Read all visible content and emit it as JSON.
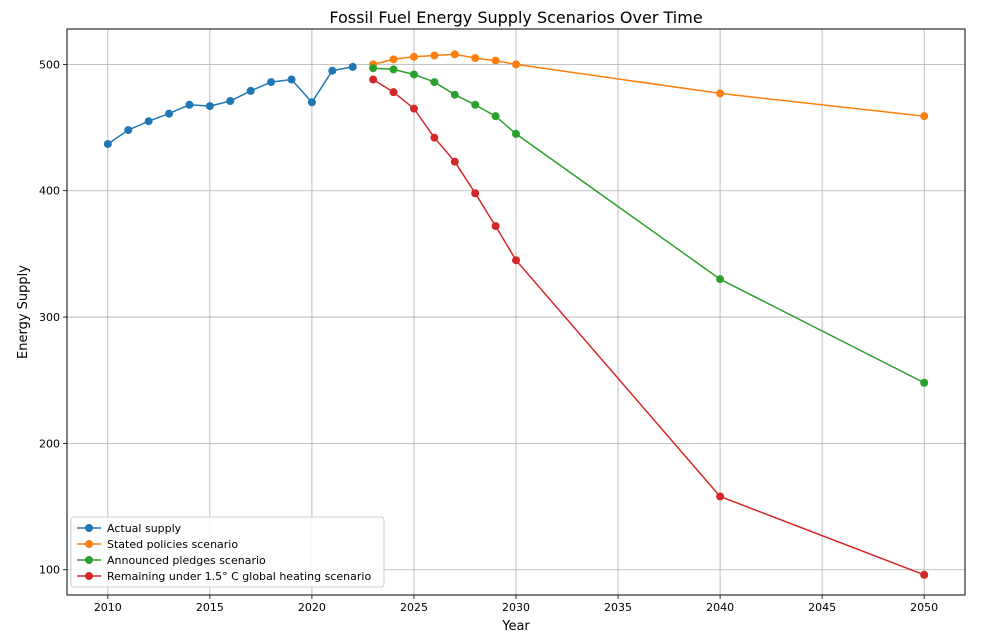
{
  "chart_data": {
    "type": "line",
    "title": "Fossil Fuel Energy Supply Scenarios Over Time",
    "xlabel": "Year",
    "ylabel": "Energy Supply",
    "xlim": [
      2008,
      2052
    ],
    "ylim": [
      80,
      528
    ],
    "xticks": [
      2010,
      2015,
      2020,
      2025,
      2030,
      2035,
      2040,
      2045,
      2050
    ],
    "yticks": [
      100,
      200,
      300,
      400,
      500
    ],
    "grid": true,
    "legend_position": "lower-left",
    "series": [
      {
        "name": "Actual supply",
        "color": "#1f77b4",
        "x": [
          2010,
          2011,
          2012,
          2013,
          2014,
          2015,
          2016,
          2017,
          2018,
          2019,
          2020,
          2021,
          2022
        ],
        "y": [
          437,
          448,
          455,
          461,
          468,
          467,
          471,
          479,
          486,
          488,
          470,
          495,
          498
        ]
      },
      {
        "name": "Stated policies scenario",
        "color": "#ff7f0e",
        "x": [
          2023,
          2024,
          2025,
          2026,
          2027,
          2028,
          2029,
          2030,
          2040,
          2050
        ],
        "y": [
          500,
          504,
          506,
          507,
          508,
          505,
          503,
          500,
          477,
          459
        ]
      },
      {
        "name": "Announced pledges scenario",
        "color": "#2ca02c",
        "x": [
          2023,
          2024,
          2025,
          2026,
          2027,
          2028,
          2029,
          2030,
          2040,
          2050
        ],
        "y": [
          497,
          496,
          492,
          486,
          476,
          468,
          459,
          445,
          330,
          248
        ]
      },
      {
        "name": "Remaining under 1.5° C global heating scenario",
        "color": "#d62728",
        "x": [
          2023,
          2024,
          2025,
          2026,
          2027,
          2028,
          2029,
          2030,
          2040,
          2050
        ],
        "y": [
          488,
          478,
          465,
          442,
          423,
          398,
          372,
          345,
          158,
          96
        ]
      }
    ]
  }
}
